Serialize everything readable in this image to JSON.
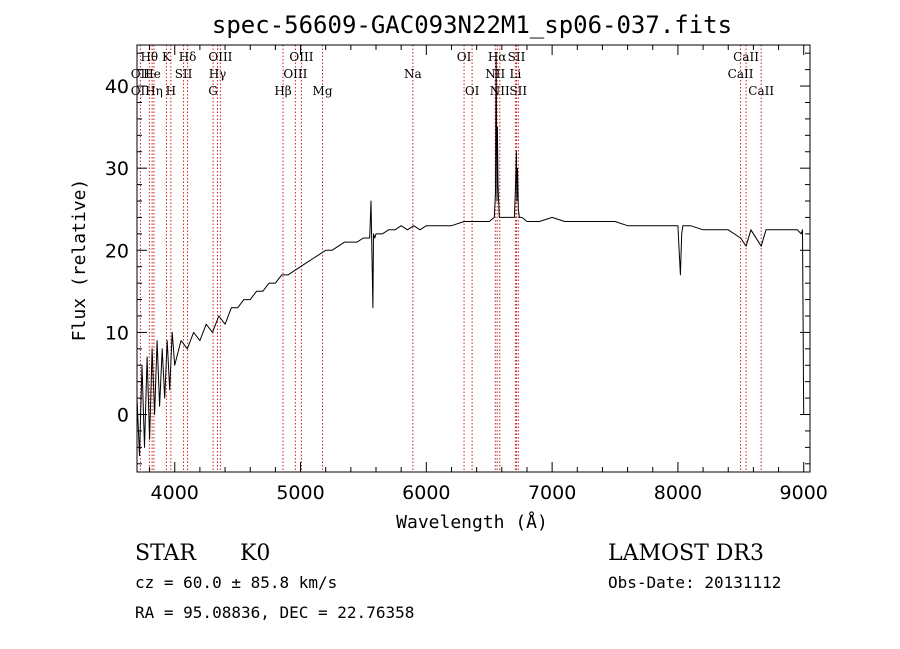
{
  "chart_data": {
    "type": "line",
    "title": "spec-56609-GAC093N22M1_sp06-037.fits",
    "xlabel": "Wavelength (Å)",
    "ylabel": "Flux (relative)",
    "xlim": [
      3700,
      9050
    ],
    "ylim": [
      -7,
      45
    ],
    "xticks": [
      4000,
      5000,
      6000,
      7000,
      8000,
      9000
    ],
    "yticks": [
      0,
      10,
      20,
      30,
      40
    ],
    "series": [
      {
        "name": "spectrum",
        "x": [
          3700,
          3720,
          3740,
          3760,
          3780,
          3800,
          3820,
          3840,
          3860,
          3880,
          3900,
          3920,
          3940,
          3960,
          3980,
          4000,
          4050,
          4100,
          4150,
          4200,
          4250,
          4300,
          4350,
          4400,
          4450,
          4500,
          4550,
          4600,
          4650,
          4700,
          4750,
          4800,
          4850,
          4900,
          4950,
          5000,
          5050,
          5100,
          5150,
          5200,
          5250,
          5300,
          5350,
          5400,
          5450,
          5500,
          5550,
          5560,
          5575,
          5580,
          5590,
          5600,
          5650,
          5700,
          5750,
          5800,
          5850,
          5900,
          5950,
          6000,
          6100,
          6200,
          6300,
          6400,
          6500,
          6540,
          6550,
          6555,
          6562,
          6565,
          6570,
          6580,
          6590,
          6600,
          6650,
          6700,
          6710,
          6716,
          6720,
          6725,
          6731,
          6740,
          6760,
          6800,
          6900,
          7000,
          7100,
          7200,
          7300,
          7400,
          7500,
          7600,
          7700,
          7800,
          7900,
          8000,
          8020,
          8030,
          8040,
          8060,
          8100,
          8200,
          8300,
          8400,
          8498,
          8542,
          8580,
          8662,
          8700,
          8800,
          8900,
          8950,
          8980,
          8990,
          9000
        ],
        "y": [
          2,
          -5,
          6,
          -4,
          7,
          -3,
          8,
          0,
          9,
          1,
          8,
          2,
          9,
          3,
          10,
          6,
          9,
          8,
          10,
          9,
          11,
          10,
          12,
          11,
          13,
          13,
          14,
          14,
          15,
          15,
          16,
          16,
          17,
          17,
          17.5,
          18,
          18.5,
          19,
          19.5,
          20,
          20,
          20.5,
          21,
          21,
          21,
          21.5,
          21.5,
          26,
          13,
          22,
          21.5,
          22,
          22,
          22.5,
          22.5,
          23,
          22.5,
          23,
          22.5,
          23,
          23,
          23,
          23.5,
          23.5,
          23.5,
          24,
          27,
          44,
          26,
          35,
          28,
          24,
          24,
          24,
          24,
          24,
          28,
          32,
          26,
          30,
          25,
          24,
          24,
          23.5,
          23.5,
          24,
          23.5,
          23.5,
          23.5,
          23.5,
          23.5,
          23,
          23,
          23,
          23,
          23,
          17,
          22,
          23,
          23,
          23,
          22.5,
          22.5,
          22.5,
          21.5,
          20.5,
          22.5,
          20.5,
          22.5,
          22.5,
          22.5,
          22.5,
          22,
          22.5,
          0
        ]
      }
    ],
    "lines": [
      {
        "label": "Hθ",
        "x": 3798,
        "row": 1
      },
      {
        "label": "OII",
        "x": 3727,
        "row": 2
      },
      {
        "label": "OII",
        "x": 3727,
        "row": 3
      },
      {
        "label": "He",
        "x": 3820,
        "row": 2
      },
      {
        "label": "Hη",
        "x": 3835,
        "row": 3
      },
      {
        "label": "K",
        "x": 3934,
        "row": 1
      },
      {
        "label": "SII",
        "x": 4070,
        "row": 2
      },
      {
        "label": "H",
        "x": 3969,
        "row": 3
      },
      {
        "label": "Hδ",
        "x": 4102,
        "row": 1
      },
      {
        "label": "OIII",
        "x": 4363,
        "row": 1
      },
      {
        "label": "Hγ",
        "x": 4340,
        "row": 2
      },
      {
        "label": "G",
        "x": 4305,
        "row": 3
      },
      {
        "label": "OIII",
        "x": 5007,
        "row": 1
      },
      {
        "label": "OIII",
        "x": 4959,
        "row": 2
      },
      {
        "label": "Hβ",
        "x": 4861,
        "row": 3
      },
      {
        "label": "Mg",
        "x": 5175,
        "row": 3
      },
      {
        "label": "Na",
        "x": 5893,
        "row": 2
      },
      {
        "label": "OI",
        "x": 6300,
        "row": 1
      },
      {
        "label": "OI",
        "x": 6364,
        "row": 3
      },
      {
        "label": "Hα",
        "x": 6563,
        "row": 1
      },
      {
        "label": "NII",
        "x": 6548,
        "row": 2
      },
      {
        "label": "NII",
        "x": 6584,
        "row": 3
      },
      {
        "label": "SII",
        "x": 6717,
        "row": 1
      },
      {
        "label": "Li",
        "x": 6708,
        "row": 2
      },
      {
        "label": "SII",
        "x": 6731,
        "row": 3
      },
      {
        "label": "CaII",
        "x": 8542,
        "row": 1
      },
      {
        "label": "CaII",
        "x": 8498,
        "row": 2
      },
      {
        "label": "CaII",
        "x": 8662,
        "row": 3
      }
    ]
  },
  "info": {
    "class": "STAR",
    "subclass": "K0",
    "survey": "LAMOST DR3",
    "redshift": "cz = 60.0 ± 85.8 km/s",
    "obs_date": "Obs-Date: 20131112",
    "coords": "RA =  95.08836, DEC =  22.76358"
  },
  "colors": {
    "line_marker": "#cc2222",
    "spectrum": "#000000",
    "axis": "#000000"
  }
}
